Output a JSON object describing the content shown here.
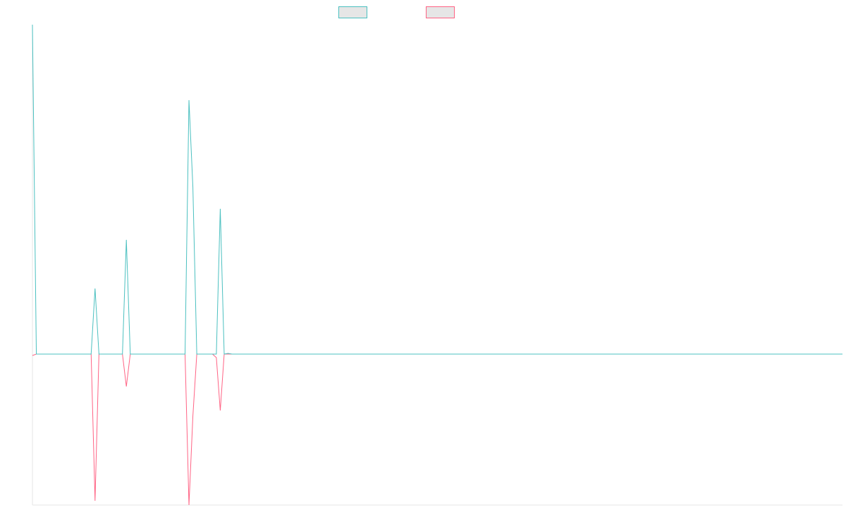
{
  "chart_data": {
    "type": "line",
    "x": [
      0,
      1,
      15,
      16,
      17,
      23,
      24,
      25,
      39,
      40,
      41,
      42,
      46,
      47,
      48,
      49,
      50,
      51,
      207
    ],
    "xlim": [
      0,
      207
    ],
    "ylim": [
      -214,
      467
    ],
    "series": [
      {
        "color": "#4bc0c0",
        "values": [
          467,
          0,
          0,
          93,
          0,
          0,
          162,
          0,
          0,
          360,
          237,
          0,
          0,
          0,
          206,
          0,
          1,
          0,
          0
        ]
      },
      {
        "color": "#ff6384",
        "values": [
          -2,
          0,
          0,
          -208,
          0,
          0,
          -46,
          0,
          0,
          -214,
          -88,
          0,
          0,
          -5,
          -80,
          0,
          0,
          0,
          0
        ]
      }
    ]
  }
}
